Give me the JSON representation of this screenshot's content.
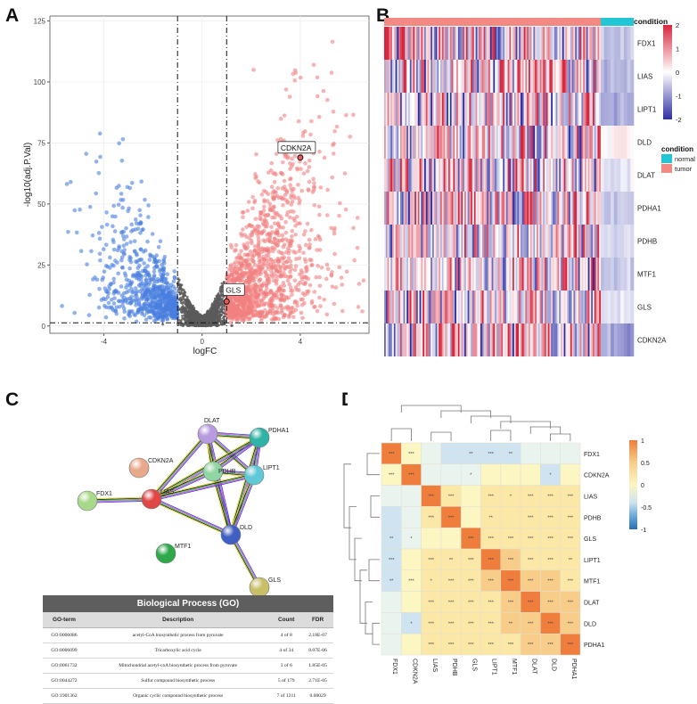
{
  "panels": {
    "a": "A",
    "b": "B",
    "c": "C",
    "d": "D"
  },
  "chart_data": [
    {
      "type": "scatter",
      "title": "",
      "xlabel": "logFC",
      "ylabel": "-log10(adj.P.Val)",
      "xlim": [
        -6.2,
        6.8
      ],
      "ylim": [
        -3,
        127
      ],
      "x_ticks": [
        "-4",
        "0",
        "4"
      ],
      "y_ticks": [
        "0",
        "25",
        "50",
        "75",
        "100",
        "125"
      ],
      "threshold_logfc": [
        -1,
        1
      ],
      "threshold_p": 1.3,
      "highlighted": [
        {
          "label": "CDKN2A",
          "x": 4.0,
          "y": 69
        },
        {
          "label": "GLS",
          "x": 1.0,
          "y": 10
        }
      ],
      "colors": {
        "up": "#f28080",
        "down": "#4a7fe0",
        "ns": "#5a5a5a"
      }
    },
    {
      "type": "heatmap",
      "title": "",
      "genes": [
        "FDX1",
        "LIAS",
        "LIPT1",
        "DLD",
        "DLAT",
        "PDHA1",
        "PDHB",
        "MTF1",
        "GLS",
        "CDKN2A"
      ],
      "annotation_label": "condition",
      "groups": [
        "tumor",
        "normal"
      ],
      "legend_title": "condition",
      "legend_items": [
        "normal",
        "tumor"
      ],
      "color_scale_ticks": [
        "2",
        "1",
        "0",
        "-1",
        "-2"
      ],
      "normal_means": [
        -0.6,
        -0.7,
        -0.8,
        0.1,
        -0.2,
        -0.5,
        -0.4,
        -0.6,
        -0.3,
        -0.9
      ],
      "colors": {
        "high": "#d7263d",
        "mid": "#ffffff",
        "low": "#2c2fa3",
        "tumor": "#f28a83",
        "normal": "#22c6d4"
      }
    },
    {
      "type": "heatmap",
      "title": "",
      "genes": [
        "FDX1",
        "CDKN2A",
        "LIAS",
        "PDHB",
        "GLS",
        "LIPT1",
        "MTF1",
        "DLAT",
        "DLD",
        "PDHA1"
      ],
      "color_scale_ticks": [
        "1",
        "0.5",
        "0",
        "-0.5",
        "-1"
      ],
      "correlation": [
        [
          1.0,
          0.1,
          -0.05,
          -0.15,
          -0.18,
          -0.2,
          -0.15,
          -0.1,
          -0.1,
          -0.12
        ],
        [
          0.1,
          1.0,
          -0.1,
          -0.05,
          -0.1,
          0.05,
          0.1,
          0.05,
          -0.15,
          0.05
        ],
        [
          -0.05,
          -0.1,
          1.0,
          0.25,
          0.05,
          0.25,
          0.15,
          0.25,
          0.3,
          0.25
        ],
        [
          -0.15,
          -0.05,
          0.25,
          1.0,
          0.1,
          0.2,
          0.2,
          0.3,
          0.3,
          0.25
        ],
        [
          -0.18,
          -0.1,
          0.05,
          0.1,
          1.0,
          0.35,
          0.35,
          0.3,
          0.3,
          0.25
        ],
        [
          -0.2,
          0.05,
          0.25,
          0.2,
          0.35,
          1.0,
          0.6,
          0.4,
          0.4,
          0.3
        ],
        [
          -0.15,
          0.1,
          0.15,
          0.2,
          0.35,
          0.6,
          1.0,
          0.5,
          0.5,
          0.3
        ],
        [
          -0.1,
          0.05,
          0.25,
          0.3,
          0.3,
          0.4,
          0.5,
          1.0,
          0.6,
          0.45
        ],
        [
          -0.1,
          -0.15,
          0.3,
          0.3,
          0.3,
          0.4,
          0.5,
          0.6,
          1.0,
          0.6
        ],
        [
          -0.12,
          0.05,
          0.25,
          0.25,
          0.25,
          0.3,
          0.3,
          0.45,
          0.6,
          1.0
        ]
      ],
      "significance": [
        [
          "***",
          "***",
          "",
          "",
          "**",
          "***",
          "**",
          "",
          "",
          ""
        ],
        [
          "***",
          "***",
          "",
          "",
          "*",
          "",
          "",
          "",
          "*",
          ""
        ],
        [
          "",
          "",
          "***",
          "***",
          "",
          "***",
          "*",
          "***",
          "***",
          "***"
        ],
        [
          "",
          "",
          "***",
          "***",
          "",
          "**",
          "",
          "***",
          "***",
          "***"
        ],
        [
          "**",
          "*",
          "",
          "",
          "***",
          "***",
          "***",
          "***",
          "***",
          "***"
        ],
        [
          "***",
          "",
          "***",
          "**",
          "***",
          "***",
          "***",
          "***",
          "***",
          "**"
        ],
        [
          "**",
          "***",
          "*",
          "***",
          "***",
          "***",
          "***",
          "***",
          "***",
          "***"
        ],
        [
          "",
          "",
          "***",
          "***",
          "***",
          "***",
          "***",
          "***",
          "***",
          "***"
        ],
        [
          "",
          "*",
          "***",
          "***",
          "***",
          "***",
          "**",
          "***",
          "***",
          "***"
        ],
        [
          "",
          "",
          "***",
          "***",
          "***",
          "***",
          "***",
          "***",
          "***",
          "***"
        ]
      ]
    },
    {
      "type": "table",
      "title": "Biological Process (GO)",
      "columns": [
        "GO-term",
        "Description",
        "Count",
        "FDR"
      ],
      "rows": [
        [
          "GO:0006086",
          "acetyl-CoA biosynthetic process from pyruvate",
          "4 of 8",
          "2.18E-07"
        ],
        [
          "GO:0006099",
          "Tricarboxylic acid cycle",
          "4 of 34",
          "8.07E-06"
        ],
        [
          "GO:0061732",
          "Mitochondrial acetyl-coA biosynthetic process from  pyruvate",
          "3 of 6",
          "1.85E-05"
        ],
        [
          "GO:0044272",
          "Sulfur compound biosynthetic process",
          "5 of 179",
          "2.71E-05"
        ],
        [
          "GO:1901362",
          "Organic cyclic compound biosynthetic process",
          "7 of 1211",
          "0.00029"
        ]
      ]
    }
  ],
  "network": {
    "nodes": [
      {
        "id": "DLAT",
        "label": "DLAT",
        "color": "#b79ae0"
      },
      {
        "id": "PDHA1",
        "label": "PDHA1",
        "color": "#2eb3a6"
      },
      {
        "id": "PDHB",
        "label": "PDHB",
        "color": "#8fd6a2"
      },
      {
        "id": "LIPT1",
        "label": "LIPT1",
        "color": "#5fc9d8"
      },
      {
        "id": "CDKN2A",
        "label": "CDKN2A",
        "color": "#e8a98a"
      },
      {
        "id": "FDX1",
        "label": "FDX1",
        "color": "#a8d88a"
      },
      {
        "id": "LIAS",
        "label": "LIAS",
        "color": "#e04646"
      },
      {
        "id": "DLD",
        "label": "DLD",
        "color": "#3f5fc2"
      },
      {
        "id": "MTF1",
        "label": "MTF1",
        "color": "#2fa84a"
      },
      {
        "id": "GLS",
        "label": "GLS",
        "color": "#c8c066"
      }
    ],
    "edges": [
      [
        "DLAT",
        "PDHA1"
      ],
      [
        "DLAT",
        "PDHB"
      ],
      [
        "DLAT",
        "LIPT1"
      ],
      [
        "DLAT",
        "LIAS"
      ],
      [
        "DLAT",
        "DLD"
      ],
      [
        "PDHA1",
        "PDHB"
      ],
      [
        "PDHA1",
        "LIPT1"
      ],
      [
        "PDHA1",
        "LIAS"
      ],
      [
        "PDHA1",
        "DLD"
      ],
      [
        "PDHB",
        "LIPT1"
      ],
      [
        "PDHB",
        "LIAS"
      ],
      [
        "PDHB",
        "DLD"
      ],
      [
        "LIPT1",
        "LIAS"
      ],
      [
        "LIPT1",
        "DLD"
      ],
      [
        "LIAS",
        "DLD"
      ],
      [
        "LIAS",
        "FDX1"
      ],
      [
        "DLD",
        "GLS"
      ]
    ]
  }
}
